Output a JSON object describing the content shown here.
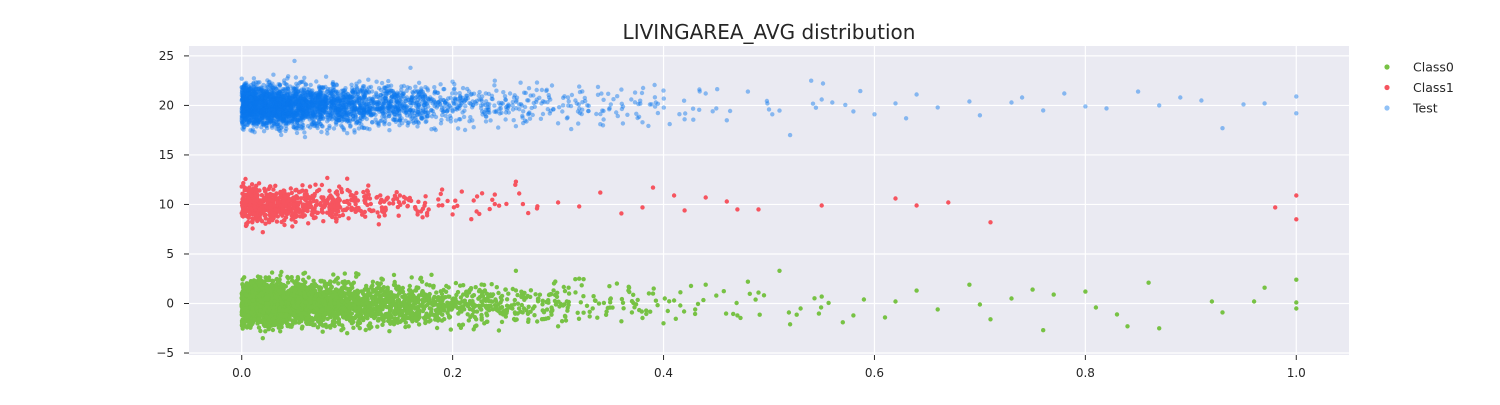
{
  "chart_data": {
    "type": "scatter",
    "title": "LIVINGAREA_AVG distribution",
    "xlabel": "",
    "ylabel": "",
    "xlim": [
      -0.05,
      1.05
    ],
    "ylim": [
      -5.2,
      26
    ],
    "x_ticks": [
      0.0,
      0.2,
      0.4,
      0.6,
      0.8,
      1.0
    ],
    "x_tick_labels": [
      "0.0",
      "0.2",
      "0.4",
      "0.6",
      "0.8",
      "1.0"
    ],
    "y_ticks": [
      -5,
      0,
      5,
      10,
      15,
      20,
      25
    ],
    "y_tick_labels": [
      "−5",
      "0",
      "5",
      "10",
      "15",
      "20",
      "25"
    ],
    "grid": true,
    "legend_position": "upper-right-outside",
    "background_color": "#eaeaf2",
    "grid_color": "#ffffff",
    "series": [
      {
        "name": "Class0",
        "color": "#77c244",
        "alpha": 1.0,
        "y_center": 0,
        "y_jitter": 3.4,
        "points": [
          [
            0.01,
            1.2
          ],
          [
            0.03,
            -0.8
          ],
          [
            0.05,
            2.1
          ],
          [
            0.07,
            -1.5
          ],
          [
            0.09,
            0.6
          ],
          [
            0.11,
            -2.2
          ],
          [
            0.13,
            1.8
          ],
          [
            0.15,
            -0.4
          ],
          [
            0.17,
            2.6
          ],
          [
            0.19,
            -1.1
          ],
          [
            0.21,
            0.9
          ],
          [
            0.23,
            -2.0
          ],
          [
            0.25,
            1.4
          ],
          [
            0.27,
            -0.7
          ],
          [
            0.29,
            0.2
          ],
          [
            0.31,
            1.6
          ],
          [
            0.33,
            -1.3
          ],
          [
            0.35,
            0.5
          ],
          [
            0.37,
            -0.9
          ],
          [
            0.39,
            1.0
          ],
          [
            0.41,
            0.3
          ],
          [
            0.43,
            -0.6
          ],
          [
            0.45,
            0.8
          ],
          [
            0.47,
            -1.2
          ],
          [
            0.49,
            1.1
          ],
          [
            0.51,
            3.3
          ],
          [
            0.53,
            -0.5
          ],
          [
            0.55,
            0.7
          ],
          [
            0.57,
            -1.9
          ],
          [
            0.59,
            0.4
          ],
          [
            0.61,
            -1.4
          ],
          [
            0.62,
            0.2
          ],
          [
            0.64,
            1.3
          ],
          [
            0.66,
            -0.6
          ],
          [
            0.69,
            1.9
          ],
          [
            0.7,
            -0.1
          ],
          [
            0.71,
            -1.6
          ],
          [
            0.73,
            0.5
          ],
          [
            0.75,
            1.4
          ],
          [
            0.76,
            -2.7
          ],
          [
            0.77,
            0.9
          ],
          [
            0.8,
            1.2
          ],
          [
            0.81,
            -0.4
          ],
          [
            0.83,
            -1.1
          ],
          [
            0.84,
            -2.3
          ],
          [
            0.86,
            2.1
          ],
          [
            0.87,
            -2.5
          ],
          [
            0.92,
            0.2
          ],
          [
            0.93,
            -0.9
          ],
          [
            0.96,
            0.2
          ],
          [
            0.97,
            1.6
          ],
          [
            1.0,
            2.4
          ],
          [
            1.0,
            -0.5
          ],
          [
            1.0,
            0.1
          ],
          [
            0.0,
            -0.3
          ],
          [
            0.02,
            -3.5
          ],
          [
            0.06,
            3.1
          ],
          [
            0.1,
            -3.0
          ],
          [
            0.14,
            -2.8
          ],
          [
            0.18,
            2.9
          ],
          [
            0.22,
            -2.6
          ],
          [
            0.26,
            3.3
          ],
          [
            0.3,
            -2.3
          ],
          [
            0.32,
            2.5
          ],
          [
            0.36,
            -1.8
          ],
          [
            0.4,
            -2.0
          ],
          [
            0.44,
            1.9
          ],
          [
            0.48,
            2.2
          ],
          [
            0.52,
            -2.1
          ],
          [
            0.58,
            -1.2
          ]
        ]
      },
      {
        "name": "Class1",
        "color": "#f6545f",
        "alpha": 1.0,
        "y_center": 10,
        "y_jitter": 2.8,
        "points": [
          [
            0.0,
            11.8
          ],
          [
            0.01,
            8.2
          ],
          [
            0.02,
            7.2
          ],
          [
            0.03,
            11.5
          ],
          [
            0.05,
            9.1
          ],
          [
            0.07,
            12.0
          ],
          [
            0.09,
            8.5
          ],
          [
            0.1,
            12.6
          ],
          [
            0.12,
            11.9
          ],
          [
            0.13,
            8.0
          ],
          [
            0.15,
            10.9
          ],
          [
            0.17,
            9.3
          ],
          [
            0.19,
            11.5
          ],
          [
            0.2,
            9.0
          ],
          [
            0.22,
            10.4
          ],
          [
            0.24,
            11.0
          ],
          [
            0.26,
            12.3
          ],
          [
            0.28,
            9.6
          ],
          [
            0.3,
            10.2
          ],
          [
            0.32,
            9.8
          ],
          [
            0.34,
            11.2
          ],
          [
            0.36,
            9.1
          ],
          [
            0.38,
            9.7
          ],
          [
            0.39,
            11.7
          ],
          [
            0.41,
            10.9
          ],
          [
            0.42,
            9.4
          ],
          [
            0.44,
            10.7
          ],
          [
            0.46,
            10.3
          ],
          [
            0.47,
            9.5
          ],
          [
            0.49,
            9.5
          ],
          [
            0.55,
            9.9
          ],
          [
            0.62,
            10.6
          ],
          [
            0.64,
            9.9
          ],
          [
            0.67,
            10.2
          ],
          [
            0.71,
            8.2
          ],
          [
            0.98,
            9.7
          ],
          [
            1.0,
            10.9
          ],
          [
            1.0,
            8.5
          ],
          [
            0.06,
            10.5
          ],
          [
            0.14,
            10.1
          ]
        ]
      },
      {
        "name": "Test",
        "color": "#0a78ee",
        "alpha": 0.45,
        "y_center": 20,
        "y_jitter": 3.3,
        "points": [
          [
            0.0,
            22.7
          ],
          [
            0.01,
            17.4
          ],
          [
            0.03,
            23.1
          ],
          [
            0.05,
            24.5
          ],
          [
            0.06,
            16.8
          ],
          [
            0.08,
            22.9
          ],
          [
            0.1,
            17.2
          ],
          [
            0.12,
            22.6
          ],
          [
            0.14,
            17.5
          ],
          [
            0.16,
            23.8
          ],
          [
            0.18,
            17.6
          ],
          [
            0.2,
            22.4
          ],
          [
            0.22,
            17.8
          ],
          [
            0.24,
            22.5
          ],
          [
            0.26,
            17.9
          ],
          [
            0.28,
            22.3
          ],
          [
            0.3,
            18.2
          ],
          [
            0.32,
            21.9
          ],
          [
            0.34,
            18.1
          ],
          [
            0.36,
            21.6
          ],
          [
            0.38,
            18.3
          ],
          [
            0.4,
            21.5
          ],
          [
            0.42,
            18.6
          ],
          [
            0.44,
            21.2
          ],
          [
            0.46,
            18.5
          ],
          [
            0.48,
            21.4
          ],
          [
            0.5,
            19.6
          ],
          [
            0.52,
            17.0
          ],
          [
            0.54,
            22.5
          ],
          [
            0.56,
            20.3
          ],
          [
            0.58,
            19.4
          ],
          [
            0.6,
            19.1
          ],
          [
            0.62,
            20.2
          ],
          [
            0.64,
            21.1
          ],
          [
            0.66,
            19.8
          ],
          [
            0.69,
            20.4
          ],
          [
            0.7,
            19.0
          ],
          [
            0.73,
            20.3
          ],
          [
            0.76,
            19.5
          ],
          [
            0.78,
            21.2
          ],
          [
            0.8,
            19.9
          ],
          [
            0.82,
            19.7
          ],
          [
            0.85,
            21.4
          ],
          [
            0.87,
            20.0
          ],
          [
            0.89,
            20.8
          ],
          [
            0.91,
            20.5
          ],
          [
            0.93,
            17.7
          ],
          [
            0.95,
            20.1
          ],
          [
            1.0,
            20.9
          ],
          [
            1.0,
            19.2
          ],
          [
            0.04,
            18.2
          ],
          [
            0.09,
            21.3
          ],
          [
            0.15,
            19.0
          ],
          [
            0.25,
            20.6
          ],
          [
            0.35,
            20.1
          ],
          [
            0.45,
            19.7
          ],
          [
            0.55,
            20.6
          ],
          [
            0.63,
            18.7
          ],
          [
            0.74,
            20.8
          ],
          [
            0.97,
            20.2
          ]
        ]
      }
    ]
  }
}
